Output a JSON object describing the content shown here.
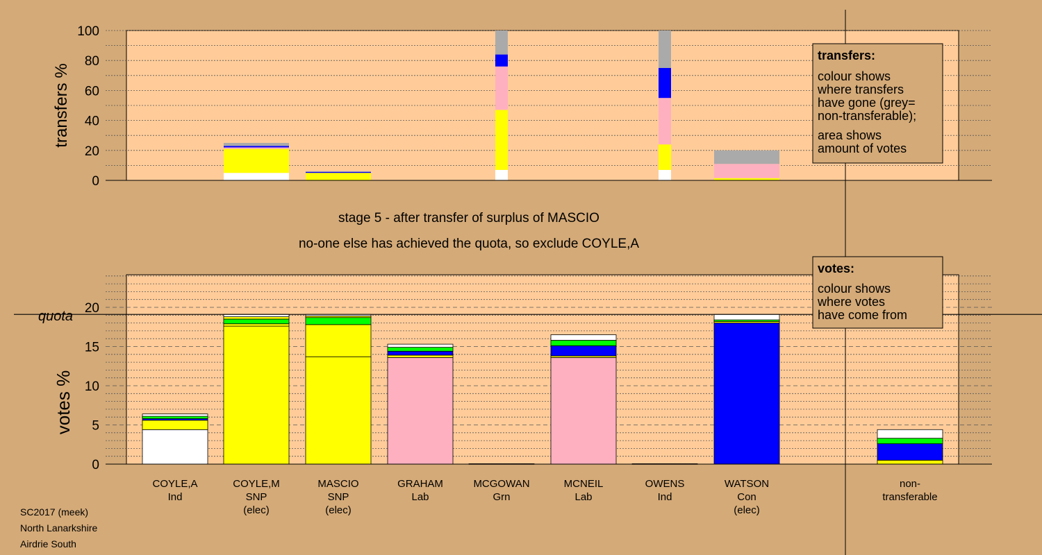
{
  "colors": {
    "background": "#d4aa78",
    "plot_bg": "#ffcc99",
    "white": "#ffffff",
    "yellow": "#ffff00",
    "green": "#00ff00",
    "blue": "#0000ff",
    "pink": "#ffb0c0",
    "grey": "#aaaaaa"
  },
  "stage_title": "stage 5 - after transfer of surplus of MASCIO",
  "stage_subtitle": "no-one else has achieved the quota, so exclude COYLE,A",
  "footer": [
    "SC2017 (meek)",
    "North Lanarkshire",
    "Airdrie South"
  ],
  "legend_transfers": {
    "title": "transfers:",
    "lines": [
      "colour shows",
      "where transfers",
      "have gone (grey=",
      "non-transferable);",
      "area shows",
      "amount of votes"
    ]
  },
  "legend_votes": {
    "title": "votes:",
    "lines": [
      "colour shows",
      "where votes",
      "have come from"
    ]
  },
  "chart_data": [
    {
      "type": "bar",
      "stacked": true,
      "ylabel": "transfers %",
      "ylim": [
        0,
        100
      ],
      "yticks": [
        0,
        20,
        40,
        60,
        80,
        100
      ],
      "bars": [
        {
          "category": "COYLE,M",
          "width": "wide",
          "segments": [
            {
              "color": "white",
              "from": 0,
              "to": 5
            },
            {
              "color": "yellow",
              "from": 5,
              "to": 21
            },
            {
              "color": "pink",
              "from": 21,
              "to": 22
            },
            {
              "color": "blue",
              "from": 22,
              "to": 23
            },
            {
              "color": "grey",
              "from": 23,
              "to": 25
            }
          ]
        },
        {
          "category": "MASCIO",
          "width": "wide",
          "segments": [
            {
              "color": "yellow",
              "from": 0,
              "to": 5
            },
            {
              "color": "blue",
              "from": 5,
              "to": 5.7
            },
            {
              "color": "grey",
              "from": 5.7,
              "to": 6
            }
          ]
        },
        {
          "category": "MCGOWAN",
          "width": "narrow",
          "segments": [
            {
              "color": "white",
              "from": 0,
              "to": 7
            },
            {
              "color": "yellow",
              "from": 7,
              "to": 47
            },
            {
              "color": "pink",
              "from": 47,
              "to": 76
            },
            {
              "color": "blue",
              "from": 76,
              "to": 84
            },
            {
              "color": "grey",
              "from": 84,
              "to": 100
            }
          ]
        },
        {
          "category": "OWENS",
          "width": "narrow",
          "segments": [
            {
              "color": "white",
              "from": 0,
              "to": 7
            },
            {
              "color": "yellow",
              "from": 7,
              "to": 24
            },
            {
              "color": "pink",
              "from": 24,
              "to": 55
            },
            {
              "color": "blue",
              "from": 55,
              "to": 75
            },
            {
              "color": "grey",
              "from": 75,
              "to": 100
            }
          ]
        },
        {
          "category": "WATSON",
          "width": "wide",
          "segments": [
            {
              "color": "yellow",
              "from": 0,
              "to": 1.5
            },
            {
              "color": "pink",
              "from": 1.5,
              "to": 11
            },
            {
              "color": "grey",
              "from": 11,
              "to": 20
            }
          ]
        }
      ]
    },
    {
      "type": "bar",
      "stacked": true,
      "ylabel": "votes %",
      "ylim": [
        0,
        24.5
      ],
      "yticks": [
        0,
        5,
        10,
        15,
        20
      ],
      "quota": 19.1,
      "quota_label": "quota",
      "categories": [
        {
          "name": "COYLE,A",
          "party": "Ind",
          "elected": ""
        },
        {
          "name": "COYLE,M",
          "party": "SNP",
          "elected": "(elec)"
        },
        {
          "name": "MASCIO",
          "party": "SNP",
          "elected": "(elec)"
        },
        {
          "name": "GRAHAM",
          "party": "Lab",
          "elected": ""
        },
        {
          "name": "MCGOWAN",
          "party": "Grn",
          "elected": ""
        },
        {
          "name": "MCNEIL",
          "party": "Lab",
          "elected": ""
        },
        {
          "name": "OWENS",
          "party": "Ind",
          "elected": ""
        },
        {
          "name": "WATSON",
          "party": "Con",
          "elected": "(elec)"
        },
        {
          "name": "non-",
          "party": "transferable",
          "elected": ""
        }
      ],
      "bars": [
        {
          "category": "COYLE,A",
          "segments": [
            {
              "color": "white",
              "from": 0,
              "to": 4.4
            },
            {
              "color": "yellow",
              "from": 4.4,
              "to": 5.6
            },
            {
              "color": "blue",
              "from": 5.6,
              "to": 5.8
            },
            {
              "color": "green",
              "from": 5.8,
              "to": 6.1
            },
            {
              "color": "white",
              "from": 6.1,
              "to": 6.4
            }
          ]
        },
        {
          "category": "COYLE,M",
          "segments": [
            {
              "color": "yellow",
              "from": 0,
              "to": 17.6
            },
            {
              "color": "yellow",
              "from": 17.6,
              "to": 17.9
            },
            {
              "color": "green",
              "from": 17.9,
              "to": 18.5
            },
            {
              "color": "yellow",
              "from": 18.5,
              "to": 18.8
            },
            {
              "color": "white",
              "from": 18.8,
              "to": 19.1
            }
          ]
        },
        {
          "category": "MASCIO",
          "segments": [
            {
              "color": "yellow",
              "from": 0,
              "to": 13.7
            },
            {
              "color": "yellow",
              "from": 13.7,
              "to": 17.8
            },
            {
              "color": "green",
              "from": 17.8,
              "to": 18.7
            },
            {
              "color": "yellow",
              "from": 18.7,
              "to": 18.9
            },
            {
              "color": "white",
              "from": 18.9,
              "to": 19.1
            }
          ]
        },
        {
          "category": "GRAHAM",
          "segments": [
            {
              "color": "pink",
              "from": 0,
              "to": 13.6
            },
            {
              "color": "yellow",
              "from": 13.6,
              "to": 13.9
            },
            {
              "color": "blue",
              "from": 13.9,
              "to": 14.4
            },
            {
              "color": "green",
              "from": 14.4,
              "to": 14.9
            },
            {
              "color": "white",
              "from": 14.9,
              "to": 15.3
            }
          ]
        },
        {
          "category": "MCGOWAN",
          "segments": [
            {
              "color": "green",
              "from": 0,
              "to": 0.05
            }
          ]
        },
        {
          "category": "MCNEIL",
          "segments": [
            {
              "color": "pink",
              "from": 0,
              "to": 13.6
            },
            {
              "color": "yellow",
              "from": 13.6,
              "to": 13.8
            },
            {
              "color": "blue",
              "from": 13.8,
              "to": 15.1
            },
            {
              "color": "green",
              "from": 15.1,
              "to": 15.8
            },
            {
              "color": "white",
              "from": 15.8,
              "to": 16.5
            }
          ]
        },
        {
          "category": "OWENS",
          "segments": [
            {
              "color": "white",
              "from": 0,
              "to": 0.05
            }
          ]
        },
        {
          "category": "WATSON",
          "segments": [
            {
              "color": "blue",
              "from": 0,
              "to": 18.0
            },
            {
              "color": "yellow",
              "from": 18.0,
              "to": 18.2
            },
            {
              "color": "green",
              "from": 18.2,
              "to": 18.4
            },
            {
              "color": "white",
              "from": 18.4,
              "to": 19.1
            }
          ]
        },
        {
          "category": "non-",
          "segments": [
            {
              "color": "yellow",
              "from": 0,
              "to": 0.5
            },
            {
              "color": "blue",
              "from": 0.5,
              "to": 2.6
            },
            {
              "color": "green",
              "from": 2.6,
              "to": 3.3
            },
            {
              "color": "white",
              "from": 3.3,
              "to": 4.4
            }
          ]
        }
      ]
    }
  ]
}
